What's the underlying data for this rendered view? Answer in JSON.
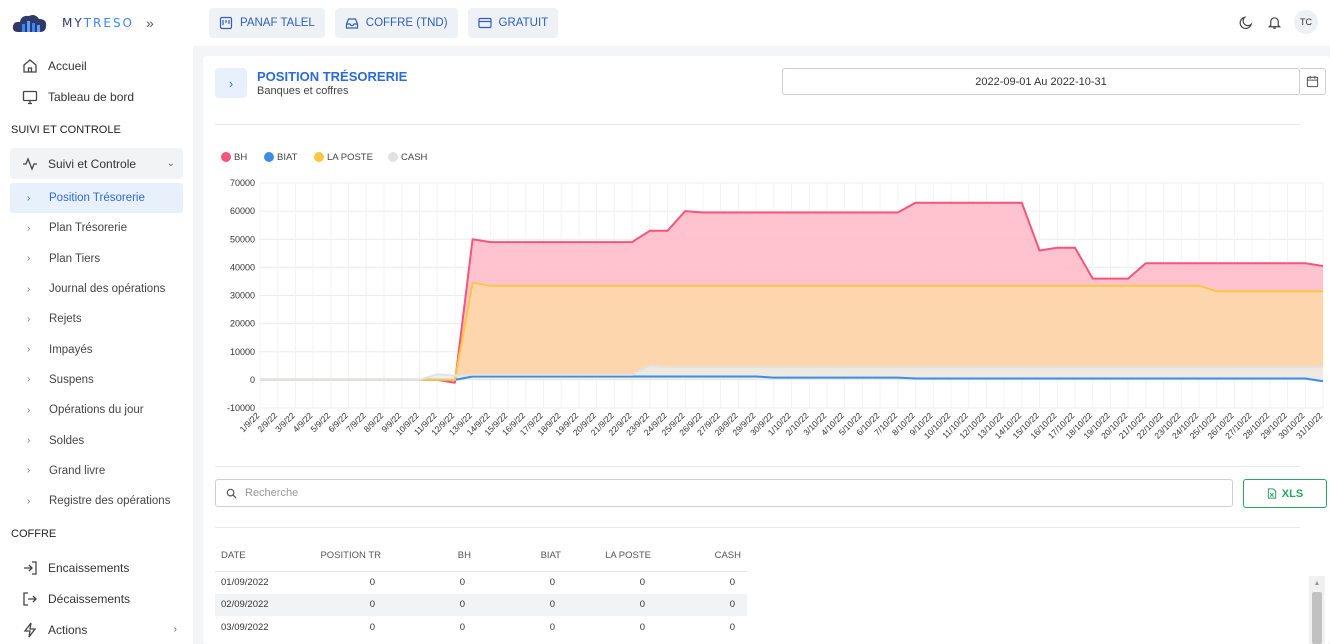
{
  "brand": {
    "name_part1": "MY",
    "name_part2": "TRESO",
    "collapse_icon": "double-chevron-right-icon"
  },
  "sidebar": {
    "top_items": [
      {
        "label": "Accueil",
        "icon": "home-icon"
      },
      {
        "label": "Tableau de bord",
        "icon": "monitor-icon"
      }
    ],
    "section1": "SUIVI ET CONTROLE",
    "group": {
      "label": "Suivi et Controle",
      "icon": "activity-icon"
    },
    "sub_items": [
      {
        "label": "Position Trésorerie",
        "active": true
      },
      {
        "label": "Plan Trésorerie"
      },
      {
        "label": "Plan Tiers"
      },
      {
        "label": "Journal des opérations"
      },
      {
        "label": "Rejets"
      },
      {
        "label": "Impayés"
      },
      {
        "label": "Suspens"
      },
      {
        "label": "Opérations du jour"
      },
      {
        "label": "Soldes"
      },
      {
        "label": "Grand livre"
      },
      {
        "label": "Registre des opérations"
      }
    ],
    "section2": "COFFRE",
    "bottom_items": [
      {
        "label": "Encaissements",
        "icon": "login-icon"
      },
      {
        "label": "Décaissements",
        "icon": "logout-icon"
      },
      {
        "label": "Actions",
        "icon": "bolt-icon"
      }
    ]
  },
  "topbar": {
    "buttons": [
      {
        "label": "PANAF TALEL",
        "icon": "board-icon"
      },
      {
        "label": "COFFRE (TND)",
        "icon": "inbox-icon"
      },
      {
        "label": "GRATUIT",
        "icon": "credit-card-icon"
      }
    ],
    "avatar": "TC"
  },
  "header": {
    "title": "POSITION TRÉSORERIE",
    "subtitle": "Banques et coffres",
    "date_range": "2022-09-01 Au 2022-10-31"
  },
  "search": {
    "placeholder": "Recherche"
  },
  "export": {
    "label": "XLS"
  },
  "table": {
    "headers": [
      "DATE",
      "POSITION TR",
      "BH",
      "BIAT",
      "LA POSTE",
      "CASH"
    ],
    "rows": [
      [
        "01/09/2022",
        "0",
        "0",
        "0",
        "0",
        "0"
      ],
      [
        "02/09/2022",
        "0",
        "0",
        "0",
        "0",
        "0"
      ],
      [
        "03/09/2022",
        "0",
        "0",
        "0",
        "0",
        "0"
      ]
    ]
  },
  "chart_data": {
    "type": "area",
    "stacked": false,
    "legend_position": "top-left",
    "grid": true,
    "ylim": [
      -10000,
      70000
    ],
    "yticks": [
      -10000,
      0,
      10000,
      20000,
      30000,
      40000,
      50000,
      60000,
      70000
    ],
    "x": [
      "1/9/22",
      "2/9/22",
      "3/9/22",
      "4/9/22",
      "5/9/22",
      "6/9/22",
      "7/9/22",
      "8/9/22",
      "9/9/22",
      "10/9/22",
      "11/9/22",
      "12/9/22",
      "13/9/22",
      "14/9/22",
      "15/9/22",
      "16/9/22",
      "17/9/22",
      "18/9/22",
      "19/9/22",
      "20/9/22",
      "21/9/22",
      "22/9/22",
      "23/9/22",
      "24/9/22",
      "25/9/22",
      "26/9/22",
      "27/9/22",
      "28/9/22",
      "29/9/22",
      "30/9/22",
      "1/10/22",
      "2/10/22",
      "3/10/22",
      "4/10/22",
      "5/10/22",
      "6/10/22",
      "7/10/22",
      "8/10/22",
      "9/10/22",
      "10/10/22",
      "11/10/22",
      "12/10/22",
      "13/10/22",
      "14/10/22",
      "15/10/22",
      "16/10/22",
      "17/10/22",
      "18/10/22",
      "19/10/22",
      "20/10/22",
      "21/10/22",
      "22/10/22",
      "23/10/22",
      "24/10/22",
      "25/10/22",
      "26/10/22",
      "27/10/22",
      "28/10/22",
      "29/10/22",
      "30/10/22",
      "31/10/22"
    ],
    "series": [
      {
        "name": "BH",
        "color": "#f5557a",
        "fill": "#ffb8c8",
        "values": [
          0,
          0,
          0,
          0,
          0,
          0,
          0,
          0,
          0,
          0,
          0,
          -1000,
          50000,
          49000,
          49000,
          49000,
          49000,
          49000,
          49000,
          49000,
          49000,
          49000,
          53000,
          53000,
          60000,
          59500,
          59500,
          59500,
          59500,
          59500,
          59500,
          59500,
          59500,
          59500,
          59500,
          59500,
          59500,
          63000,
          63000,
          63000,
          63000,
          63000,
          63000,
          63000,
          46000,
          47000,
          47000,
          36000,
          36000,
          36000,
          41500,
          41500,
          41500,
          41500,
          41500,
          41500,
          41500,
          41500,
          41500,
          41500,
          40500
        ]
      },
      {
        "name": "BIAT",
        "color": "#3d8ee3",
        "fill": "#cfe2f7",
        "values": [
          0,
          0,
          0,
          0,
          0,
          0,
          0,
          0,
          0,
          0,
          0,
          0,
          1200,
          1200,
          1200,
          1200,
          1200,
          1200,
          1200,
          1200,
          1200,
          1200,
          1200,
          1200,
          1200,
          1200,
          1200,
          1200,
          1200,
          800,
          800,
          800,
          800,
          800,
          800,
          800,
          800,
          500,
          500,
          500,
          500,
          500,
          500,
          500,
          500,
          500,
          500,
          500,
          500,
          500,
          500,
          500,
          500,
          500,
          500,
          500,
          500,
          500,
          500,
          500,
          -500
        ]
      },
      {
        "name": "LA POSTE",
        "color": "#f7c844",
        "fill": "#fdd9a8",
        "values": [
          0,
          0,
          0,
          0,
          0,
          0,
          0,
          0,
          0,
          0,
          0,
          0,
          34500,
          33500,
          33500,
          33500,
          33500,
          33500,
          33500,
          33500,
          33500,
          33500,
          33500,
          33500,
          33500,
          33500,
          33500,
          33500,
          33500,
          33500,
          33500,
          33500,
          33500,
          33500,
          33500,
          33500,
          33500,
          33500,
          33500,
          33500,
          33500,
          33500,
          33500,
          33500,
          33500,
          33500,
          33500,
          33500,
          33500,
          33500,
          33500,
          33500,
          33500,
          33500,
          31500,
          31500,
          31500,
          31500,
          31500,
          31500,
          31500
        ]
      },
      {
        "name": "CASH",
        "color": "#e2e2e2",
        "fill": "#ececec",
        "values": [
          0,
          0,
          0,
          0,
          0,
          0,
          0,
          0,
          0,
          0,
          2000,
          1500,
          1800,
          1800,
          1800,
          1800,
          1800,
          1800,
          1800,
          1800,
          1800,
          1800,
          5000,
          4500,
          4500,
          4500,
          4500,
          4500,
          4500,
          4500,
          4500,
          4500,
          4500,
          4500,
          4500,
          4500,
          4500,
          4500,
          4500,
          4500,
          4500,
          4500,
          4500,
          4500,
          4500,
          4500,
          4500,
          4500,
          4500,
          4500,
          4500,
          4500,
          4500,
          4500,
          4500,
          4500,
          4500,
          4500,
          4500,
          4500,
          4500
        ]
      }
    ]
  }
}
